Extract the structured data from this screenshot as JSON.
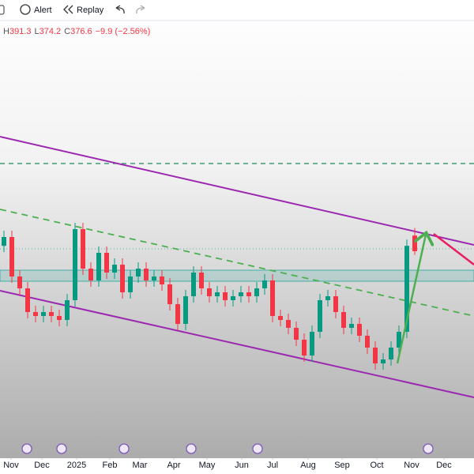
{
  "toolbar": {
    "alert": "Alert",
    "replay": "Replay"
  },
  "legend": [
    {
      "label": "H",
      "value": "391.3"
    },
    {
      "label": "L",
      "value": "374.2"
    },
    {
      "label": "C",
      "value": "376.6"
    },
    {
      "value": "−9.9 (−2.56%)"
    }
  ],
  "chart_data": {
    "type": "candlestick",
    "up_color": "#089981",
    "down_color": "#f23645",
    "x": [
      0,
      1,
      2,
      3,
      4,
      5,
      6,
      7,
      8,
      9,
      10,
      11,
      12,
      13,
      14,
      15,
      16,
      17,
      18,
      19,
      20,
      21,
      22,
      23,
      24,
      25,
      26,
      27,
      28,
      29,
      30,
      31,
      32,
      33,
      34,
      35,
      36,
      37,
      38,
      39,
      40,
      41,
      42,
      43,
      44,
      45,
      46,
      47,
      48,
      49,
      50,
      51,
      52
    ],
    "candles": [
      [
        380,
        389.6,
        376,
        385.6
      ],
      [
        385.6,
        389.6,
        356.6,
        360.6
      ],
      [
        360.6,
        364.6,
        349.1,
        353.1
      ],
      [
        353.1,
        357.1,
        334.1,
        338.1
      ],
      [
        338.1,
        342.1,
        331.6,
        335.6
      ],
      [
        335.6,
        342.1,
        331.6,
        338.1
      ],
      [
        338.1,
        342.1,
        331.6,
        335.6
      ],
      [
        335.6,
        339.6,
        329.1,
        333.1
      ],
      [
        333.1,
        349.6,
        329.1,
        345.6
      ],
      [
        345.6,
        394.6,
        341.6,
        390.6
      ],
      [
        390.6,
        394.6,
        361.6,
        365.6
      ],
      [
        365.6,
        369.6,
        354.1,
        358.1
      ],
      [
        358.1,
        379.6,
        354.1,
        375.6
      ],
      [
        375.6,
        379.6,
        359.1,
        363.1
      ],
      [
        363.1,
        372.1,
        359.1,
        368.1
      ],
      [
        368.1,
        372.1,
        346.6,
        350.6
      ],
      [
        350.6,
        364.6,
        346.6,
        360.6
      ],
      [
        360.6,
        369.6,
        356.6,
        365.6
      ],
      [
        365.6,
        369.6,
        354.1,
        358.1
      ],
      [
        358.1,
        364.6,
        354.1,
        360.6
      ],
      [
        360.6,
        364.6,
        351.6,
        355.6
      ],
      [
        355.6,
        359.6,
        339.1,
        343.1
      ],
      [
        343.1,
        347.1,
        326.6,
        330.6
      ],
      [
        330.6,
        352.1,
        326.6,
        348.1
      ],
      [
        348.1,
        367.1,
        344.1,
        363.1
      ],
      [
        363.1,
        367.1,
        349.1,
        353.1
      ],
      [
        353.1,
        357.1,
        344.1,
        348.1
      ],
      [
        348.1,
        354.6,
        344.1,
        350.6
      ],
      [
        350.6,
        354.6,
        341.6,
        345.6
      ],
      [
        345.6,
        352.1,
        341.6,
        348.1
      ],
      [
        348.1,
        354.6,
        344.1,
        350.6
      ],
      [
        350.6,
        354.6,
        344.1,
        348.1
      ],
      [
        348.1,
        357.1,
        344.1,
        353.1
      ],
      [
        353.1,
        362.1,
        349.1,
        358.1
      ],
      [
        358.1,
        362.1,
        331.6,
        335.6
      ],
      [
        335.6,
        339.6,
        329.1,
        333.1
      ],
      [
        333.1,
        337.1,
        324.1,
        328.1
      ],
      [
        328.1,
        332.1,
        316.6,
        320.6
      ],
      [
        320.6,
        324.6,
        306.6,
        310.6
      ],
      [
        310.6,
        329.6,
        306.6,
        325.6
      ],
      [
        325.6,
        349.6,
        321.6,
        345.6
      ],
      [
        345.6,
        352.1,
        341.6,
        348.1
      ],
      [
        348.1,
        352.1,
        334.1,
        338.1
      ],
      [
        338.1,
        342.1,
        324.1,
        328.1
      ],
      [
        328.1,
        334.6,
        324.1,
        330.6
      ],
      [
        330.6,
        334.6,
        319.1,
        323.1
      ],
      [
        323.1,
        327.1,
        311.6,
        315.6
      ],
      [
        315.6,
        319.6,
        301.6,
        305.6
      ],
      [
        305.6,
        312.1,
        301.6,
        308.1
      ],
      [
        308.1,
        319.6,
        304.1,
        315.6
      ],
      [
        315.6,
        329.6,
        311.6,
        325.6
      ],
      [
        325.6,
        384,
        321.6,
        380
      ],
      [
        386.5,
        391.3,
        374.2,
        376.6
      ]
    ],
    "xlim": [
      -0.5,
      59.5
    ],
    "ylim": [
      245.6,
      513.1
    ],
    "xticks": [
      {
        "value": 0.9,
        "label": "Nov"
      },
      {
        "value": 4.8,
        "label": "Dec"
      },
      {
        "value": 9.2,
        "label": "2025"
      },
      {
        "value": 13.4,
        "label": "Feb"
      },
      {
        "value": 17.2,
        "label": "Mar"
      },
      {
        "value": 21.5,
        "label": "Apr"
      },
      {
        "value": 25.7,
        "label": "May"
      },
      {
        "value": 30.1,
        "label": "Jun"
      },
      {
        "value": 34,
        "label": "Jul"
      },
      {
        "value": 38.5,
        "label": "Aug"
      },
      {
        "value": 42.8,
        "label": "Sep"
      },
      {
        "value": 47.2,
        "label": "Oct"
      },
      {
        "value": 51.6,
        "label": "Nov"
      },
      {
        "value": 55.7,
        "label": "Dec"
      }
    ]
  }
}
